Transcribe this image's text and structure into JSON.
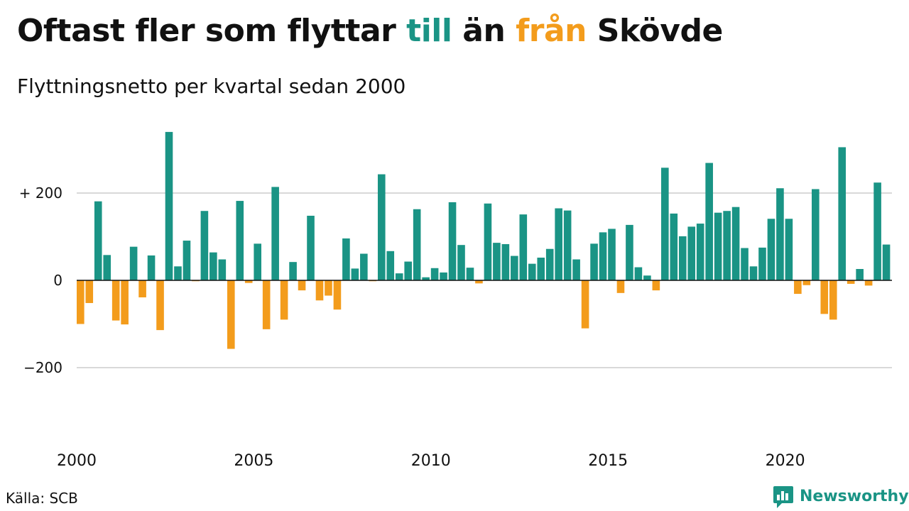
{
  "title": {
    "prefix": "Oftast fler som flyttar ",
    "till": "till",
    "middle": " än ",
    "fran": "från",
    "suffix": " Skövde"
  },
  "subtitle": "Flyttningsnetto per kvartal sedan 2000",
  "source": "Källa: SCB",
  "brand": "Newsworthy",
  "colors": {
    "positive": "#1a9485",
    "negative": "#f39c1c",
    "grid": "#d9d9d9",
    "zero": "#111111"
  },
  "chart_data": {
    "type": "bar",
    "title": "Oftast fler som flyttar till än från Skövde",
    "subtitle": "Flyttningsnetto per kvartal sedan 2000",
    "xlabel": "",
    "ylabel": "",
    "x_ticks": [
      "2000",
      "2005",
      "2010",
      "2015",
      "2020"
    ],
    "y_ticks": [
      {
        "value": 200,
        "label": "+ 200"
      },
      {
        "value": 0,
        "label": "0"
      },
      {
        "value": -200,
        "label": "−200"
      }
    ],
    "ylim": [
      -380,
      380
    ],
    "grid": true,
    "legend": "none",
    "start_year": 2000,
    "quarters_per_year": 4,
    "values": [
      -100,
      -52,
      181,
      58,
      -92,
      -101,
      77,
      -39,
      57,
      -114,
      340,
      32,
      91,
      -2,
      159,
      64,
      48,
      -157,
      182,
      -6,
      84,
      -112,
      214,
      -90,
      42,
      -23,
      148,
      -46,
      -35,
      -67,
      96,
      27,
      61,
      -2,
      243,
      67,
      16,
      43,
      163,
      7,
      28,
      18,
      179,
      81,
      29,
      -7,
      176,
      86,
      83,
      56,
      151,
      38,
      52,
      72,
      165,
      160,
      48,
      -110,
      84,
      110,
      118,
      -29,
      127,
      30,
      11,
      -23,
      258,
      153,
      101,
      123,
      130,
      269,
      155,
      159,
      168,
      74,
      32,
      75,
      141,
      211,
      141,
      -31,
      -11,
      209,
      -77,
      -90,
      305,
      -8,
      26,
      -12,
      224,
      82
    ]
  }
}
